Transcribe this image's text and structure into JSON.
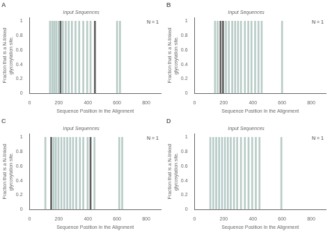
{
  "chart_data": [
    {
      "type": "bar",
      "title": "A",
      "subtitle": "Input Sequences",
      "annotations": [
        "N = 1"
      ],
      "x": [
        140,
        155,
        168,
        182,
        198,
        212,
        228,
        248,
        268,
        290,
        315,
        340,
        368,
        395,
        418,
        448,
        600,
        620
      ],
      "values": [
        1,
        1,
        1,
        1,
        1,
        1,
        1,
        1,
        1,
        1,
        1,
        1,
        1,
        1,
        1,
        1,
        1,
        1
      ],
      "colors": [
        "#b8ccc8",
        "#b8ccc8",
        "#b8ccc8",
        "#b8ccc8",
        "#b8ccc8",
        "#606060",
        "#b8ccc8",
        "#b8ccc8",
        "#b8ccc8",
        "#b8ccc8",
        "#b8ccc8",
        "#b8ccc8",
        "#b8ccc8",
        "#b8ccc8",
        "#b8ccc8",
        "#606060",
        "#b8ccc8",
        "#b8ccc8"
      ],
      "xlabel": "Sequence Position In the Alignment",
      "ylabel": "Fraction that is a N-linked glycosylation site.",
      "xlim": [
        0,
        900
      ],
      "ylim": [
        0,
        1.05
      ],
      "xticks": [
        0,
        200,
        400,
        600,
        800
      ],
      "yticks": [
        0,
        0.2,
        0.4,
        0.6,
        0.8,
        1.0
      ],
      "grid": false
    },
    {
      "type": "bar",
      "title": "B",
      "subtitle": "Input Sequences",
      "annotations": [
        "N = 1"
      ],
      "x": [
        140,
        158,
        178,
        195,
        215,
        235,
        258,
        278,
        298,
        318,
        345,
        368,
        390,
        415,
        438,
        460,
        600
      ],
      "values": [
        1,
        1,
        1,
        1,
        1,
        1,
        1,
        1,
        1,
        1,
        1,
        1,
        1,
        1,
        1,
        1,
        1
      ],
      "colors": [
        "#b8ccc8",
        "#b8ccc8",
        "#606060",
        "#606060",
        "#b8ccc8",
        "#b8ccc8",
        "#b8ccc8",
        "#b8ccc8",
        "#b8ccc8",
        "#b8ccc8",
        "#b8ccc8",
        "#b8ccc8",
        "#b8ccc8",
        "#b8ccc8",
        "#b8ccc8",
        "#b8ccc8",
        "#b8ccc8"
      ],
      "xlabel": "Sequence Position In the Alignment",
      "ylabel": "Fraction that is a N-linked glycosylation site.",
      "xlim": [
        0,
        900
      ],
      "ylim": [
        0,
        1.05
      ],
      "xticks": [
        0,
        200,
        400,
        600,
        800
      ],
      "yticks": [
        0,
        0.2,
        0.4,
        0.6,
        0.8,
        1.0
      ],
      "grid": false
    },
    {
      "type": "bar",
      "title": "C",
      "subtitle": "Input Sequences",
      "annotations": [
        "N = 1"
      ],
      "x": [
        108,
        148,
        165,
        180,
        198,
        218,
        238,
        258,
        278,
        298,
        320,
        345,
        368,
        398,
        418,
        445,
        615,
        635
      ],
      "values": [
        1,
        1,
        1,
        1,
        1,
        1,
        1,
        1,
        1,
        1,
        1,
        1,
        1,
        1,
        1,
        1,
        1,
        1
      ],
      "colors": [
        "#b8ccc8",
        "#606060",
        "#b8ccc8",
        "#b8ccc8",
        "#b8ccc8",
        "#b8ccc8",
        "#b8ccc8",
        "#b8ccc8",
        "#b8ccc8",
        "#b8ccc8",
        "#b8ccc8",
        "#b8ccc8",
        "#b8ccc8",
        "#b8ccc8",
        "#606060",
        "#b8ccc8",
        "#b8ccc8",
        "#b8ccc8"
      ],
      "xlabel": "Sequence Position In the Alignment",
      "ylabel": "Fraction that is a N-linked glycosylation site.",
      "xlim": [
        0,
        900
      ],
      "ylim": [
        0,
        1.05
      ],
      "xticks": [
        0,
        200,
        400,
        600,
        800
      ],
      "yticks": [
        0,
        0.2,
        0.4,
        0.6,
        0.8,
        1.0
      ],
      "grid": false
    },
    {
      "type": "bar",
      "title": "D",
      "subtitle": "Input Sequences",
      "annotations": [
        "N = 1"
      ],
      "x": [
        108,
        128,
        148,
        168,
        188,
        208,
        228,
        248,
        270,
        292,
        318,
        345,
        370,
        395,
        420,
        445,
        595
      ],
      "values": [
        1,
        1,
        1,
        1,
        1,
        1,
        1,
        1,
        1,
        1,
        1,
        1,
        1,
        1,
        1,
        1,
        1
      ],
      "colors": [
        "#b8ccc8",
        "#b8ccc8",
        "#b8ccc8",
        "#b8ccc8",
        "#b8ccc8",
        "#b8ccc8",
        "#b8ccc8",
        "#b8ccc8",
        "#b8ccc8",
        "#b8ccc8",
        "#b8ccc8",
        "#b8ccc8",
        "#b8ccc8",
        "#b8ccc8",
        "#b8ccc8",
        "#b8ccc8",
        "#b8ccc8"
      ],
      "xlabel": "Sequence Position In the Alignment",
      "ylabel": "Fraction that is a N-linked glycosylation site.",
      "xlim": [
        0,
        900
      ],
      "ylim": [
        0,
        1.05
      ],
      "xticks": [
        0,
        200,
        400,
        600,
        800
      ],
      "yticks": [
        0,
        0.2,
        0.4,
        0.6,
        0.8,
        1.0
      ],
      "grid": false
    }
  ]
}
